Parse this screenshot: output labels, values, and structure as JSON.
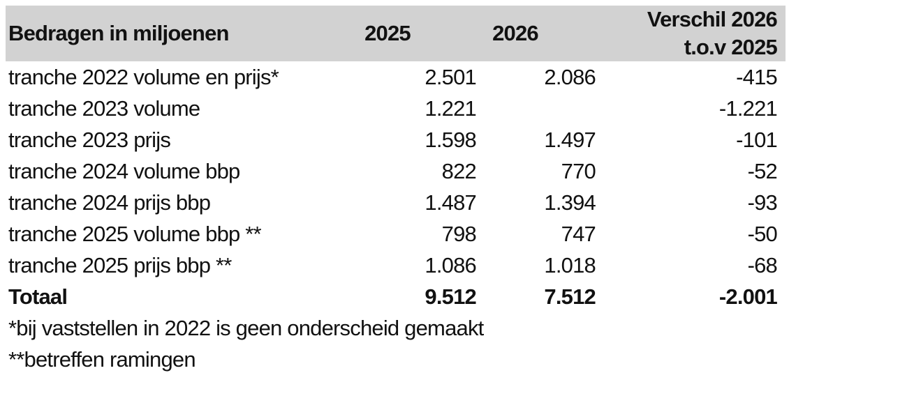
{
  "table": {
    "header": {
      "col_label": "Bedragen in miljoenen",
      "col_2025": "2025",
      "col_2026": "2026",
      "col_diff_line1": "Verschil 2026",
      "col_diff_line2": "t.o.v 2025",
      "bg_color": "#d2d2d2"
    },
    "rows": [
      {
        "label": "tranche 2022 volume en prijs*",
        "y2025": "2.501",
        "y2026": "2.086",
        "diff": "-415",
        "bold": false
      },
      {
        "label": "tranche 2023 volume",
        "y2025": "1.221",
        "y2026": "",
        "diff": "-1.221",
        "bold": false
      },
      {
        "label": "tranche 2023 prijs",
        "y2025": "1.598",
        "y2026": "1.497",
        "diff": "-101",
        "bold": false
      },
      {
        "label": "tranche 2024 volume bbp",
        "y2025": "822",
        "y2026": "770",
        "diff": "-52",
        "bold": false
      },
      {
        "label": "tranche 2024 prijs bbp",
        "y2025": "1.487",
        "y2026": "1.394",
        "diff": "-93",
        "bold": false
      },
      {
        "label": "tranche 2025 volume bbp **",
        "y2025": "798",
        "y2026": "747",
        "diff": "-50",
        "bold": false
      },
      {
        "label": "tranche 2025 prijs bbp **",
        "y2025": "1.086",
        "y2026": "1.018",
        "diff": "-68",
        "bold": false
      },
      {
        "label": "Totaal",
        "y2025": "9.512",
        "y2026": "7.512",
        "diff": "-2.001",
        "bold": true
      }
    ],
    "footnotes": [
      "*bij vaststellen in 2022 is geen onderscheid gemaakt",
      "**betreffen ramingen"
    ],
    "colors": {
      "header_bg": "#d2d2d2",
      "text": "#111111",
      "background": "#ffffff"
    }
  },
  "chart_data": {
    "type": "table",
    "title": "Bedragen in miljoenen",
    "columns": [
      "Bedragen in miljoenen",
      "2025",
      "2026",
      "Verschil 2026 t.o.v 2025"
    ],
    "rows": [
      [
        "tranche 2022 volume en prijs*",
        2501,
        2086,
        -415
      ],
      [
        "tranche 2023 volume",
        1221,
        null,
        -1221
      ],
      [
        "tranche 2023 prijs",
        1598,
        1497,
        -101
      ],
      [
        "tranche 2024 volume bbp",
        822,
        770,
        -52
      ],
      [
        "tranche 2024 prijs bbp",
        1487,
        1394,
        -93
      ],
      [
        "tranche 2025 volume bbp **",
        798,
        747,
        -50
      ],
      [
        "tranche 2025 prijs bbp **",
        1086,
        1018,
        -68
      ],
      [
        "Totaal",
        9512,
        7512,
        -2001
      ]
    ],
    "footnotes": [
      "*bij vaststellen in 2022 is geen onderscheid gemaakt",
      "**betreffen ramingen"
    ]
  }
}
